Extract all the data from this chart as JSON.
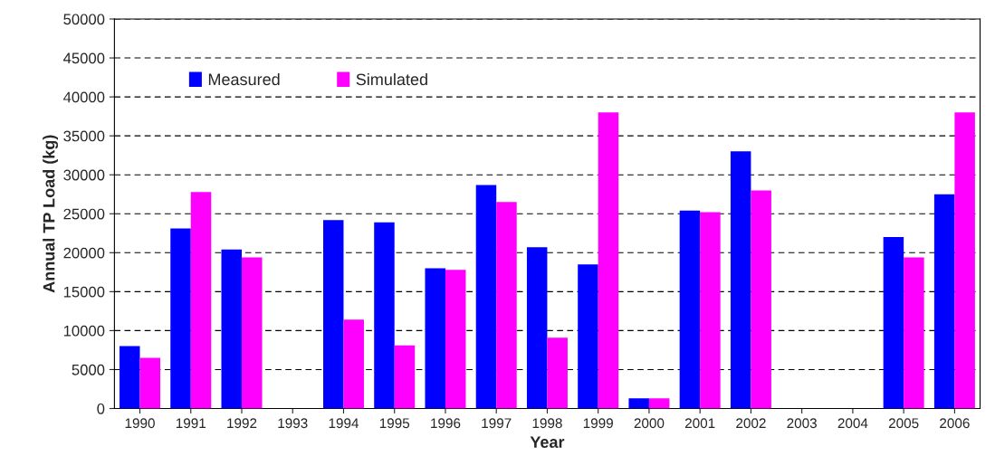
{
  "chart_data": {
    "type": "bar",
    "xlabel": "Year",
    "ylabel": "Annual TP Load (kg)",
    "categories": [
      "1990",
      "1991",
      "1992",
      "1993",
      "1994",
      "1995",
      "1996",
      "1997",
      "1998",
      "1999",
      "2000",
      "2001",
      "2002",
      "2003",
      "2004",
      "2005",
      "2006"
    ],
    "series": [
      {
        "name": "Measured",
        "color": "#0000ff",
        "values": [
          8000,
          23100,
          20400,
          null,
          24200,
          23900,
          18000,
          28700,
          20700,
          18500,
          1300,
          25400,
          33000,
          null,
          null,
          22000,
          27500
        ]
      },
      {
        "name": "Simulated",
        "color": "#ff00ff",
        "values": [
          6500,
          27800,
          19400,
          null,
          11400,
          8100,
          17800,
          26500,
          9100,
          38000,
          1300,
          25200,
          28000,
          null,
          null,
          19400,
          38000
        ]
      }
    ],
    "ylim": [
      0,
      50000
    ],
    "yticks": [
      0,
      5000,
      10000,
      15000,
      20000,
      25000,
      30000,
      35000,
      40000,
      45000,
      50000
    ],
    "grid": "y",
    "legend": "top left"
  }
}
